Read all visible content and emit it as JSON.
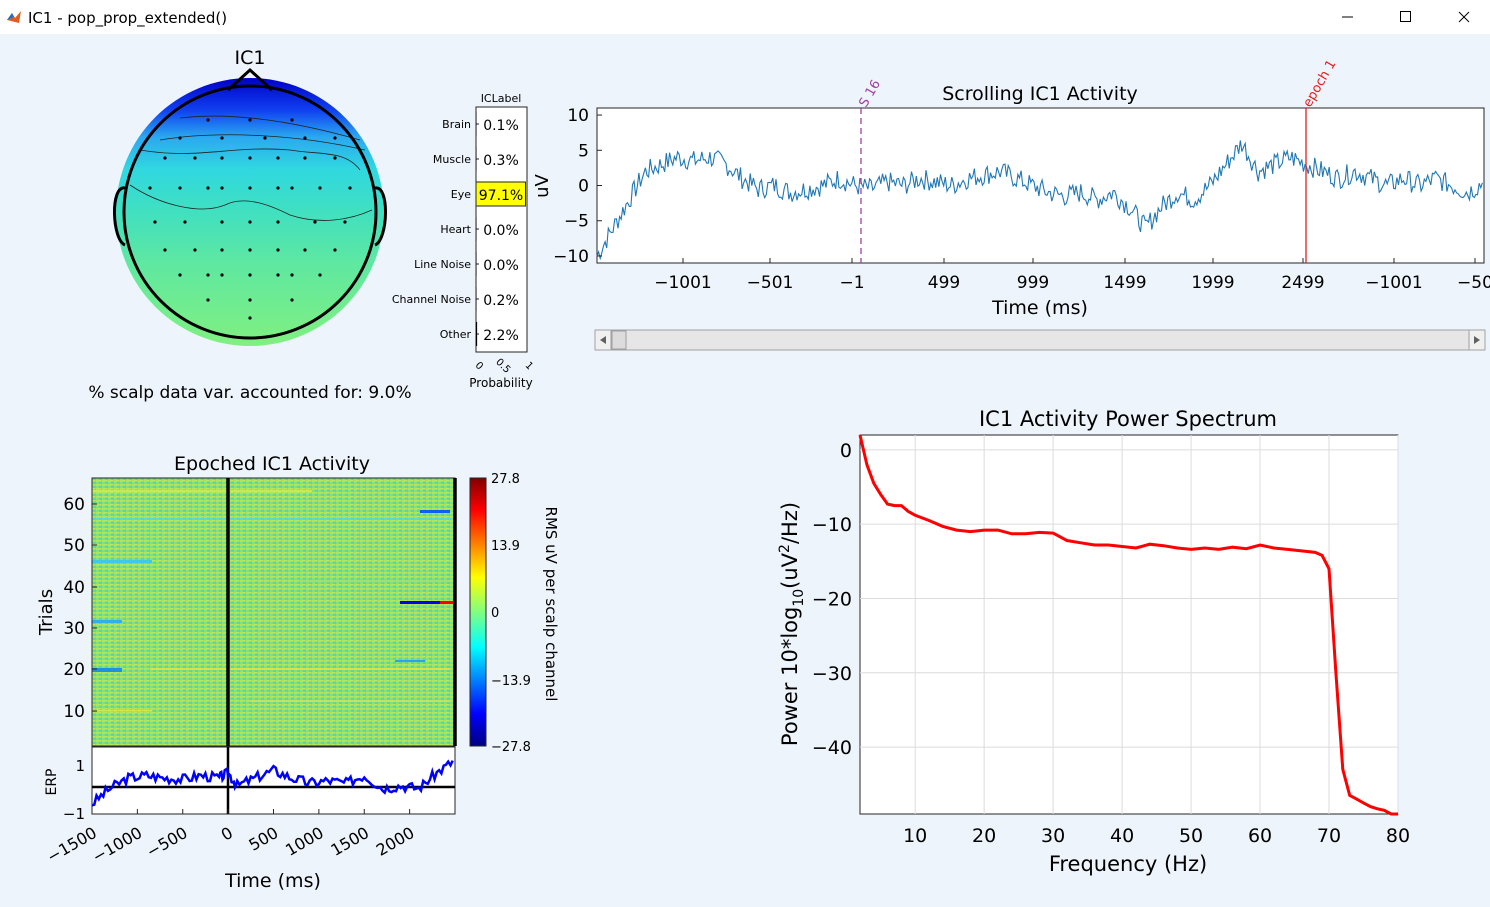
{
  "window": {
    "title": "IC1 - pop_prop_extended()"
  },
  "topo": {
    "title": "IC1",
    "variance_text": "% scalp data var. accounted for: 9.0%"
  },
  "iclabel": {
    "title": "ICLabel",
    "xlabel": "Probability",
    "xticks": [
      "0",
      "0.5",
      "1"
    ],
    "categories": [
      {
        "name": "Brain",
        "value": "0.1%",
        "prob": 0.001
      },
      {
        "name": "Muscle",
        "value": "0.3%",
        "prob": 0.003
      },
      {
        "name": "Eye",
        "value": "97.1%",
        "prob": 0.971
      },
      {
        "name": "Heart",
        "value": "0.0%",
        "prob": 0.0
      },
      {
        "name": "Line Noise",
        "value": "0.0%",
        "prob": 0.0
      },
      {
        "name": "Channel Noise",
        "value": "0.2%",
        "prob": 0.002
      },
      {
        "name": "Other",
        "value": "2.2%",
        "prob": 0.022
      }
    ],
    "highlight_color": "#ffff00"
  },
  "scrolling": {
    "title": "Scrolling IC1 Activity",
    "ylabel": "uV",
    "xlabel": "Time (ms)",
    "yticks": [
      "10",
      "5",
      "0",
      "−5",
      "−10"
    ],
    "xticks": [
      "−1001",
      "−501",
      "−1",
      "499",
      "999",
      "1499",
      "1999",
      "2499",
      "−1001",
      "−50"
    ],
    "event_s16": "S 16",
    "event_epoch": "epoch 1",
    "line_color": "#1f77b4"
  },
  "epoched": {
    "title": "Epoched IC1 Activity",
    "ylabel": "Trials",
    "yticks": [
      "60",
      "50",
      "40",
      "30",
      "20",
      "10"
    ],
    "colorbar_ticks": [
      "27.8",
      "13.9",
      "0",
      "−13.9",
      "−27.8"
    ],
    "colorbar_label": "RMS uV per scalp channel",
    "erp_label": "ERP",
    "erp_yticks": [
      "1",
      "−1"
    ],
    "xticks": [
      "−1500",
      "−1000",
      "−500",
      "0",
      "500",
      "1000",
      "1500",
      "2000"
    ],
    "xlabel": "Time (ms)"
  },
  "spectrum": {
    "title": "IC1 Activity Power Spectrum",
    "xlabel": "Frequency (Hz)",
    "ylabel_prefix": "Power 10*log",
    "ylabel_sub": "10",
    "ylabel_mid": "(uV",
    "ylabel_sup": "2",
    "ylabel_suffix": "/Hz)",
    "xticks": [
      "10",
      "20",
      "30",
      "40",
      "50",
      "60",
      "70",
      "80"
    ],
    "yticks": [
      "0",
      "−10",
      "−20",
      "−30",
      "−40"
    ],
    "line_color": "#ff0000"
  },
  "chart_data": [
    {
      "type": "bar",
      "title": "ICLabel",
      "categories": [
        "Brain",
        "Muscle",
        "Eye",
        "Heart",
        "Line Noise",
        "Channel Noise",
        "Other"
      ],
      "values": [
        0.001,
        0.003,
        0.971,
        0.0,
        0.0,
        0.002,
        0.022
      ],
      "xlabel": "Probability",
      "xlim": [
        0,
        1
      ]
    },
    {
      "type": "line",
      "title": "Scrolling IC1 Activity",
      "xlabel": "Time (ms)",
      "ylabel": "uV",
      "ylim": [
        -11,
        11
      ],
      "x": [
        -1500,
        -1400,
        -1300,
        -1200,
        -1100,
        -1000,
        -900,
        -800,
        -700,
        -600,
        -500,
        -400,
        -300,
        -200,
        -100,
        0,
        100,
        200,
        300,
        400,
        500,
        600,
        700,
        800,
        900,
        1000,
        1100,
        1200,
        1300,
        1400,
        1500,
        1600,
        1700,
        1800,
        1900,
        2000,
        2100,
        2200,
        2300,
        2400,
        2499,
        2600,
        2700,
        2800,
        2900,
        3000,
        3100,
        3200,
        3300,
        3400,
        3500,
        3600,
        3700,
        3800,
        3900,
        4000
      ],
      "y": [
        -10,
        -6,
        -2,
        2,
        3,
        4,
        3.5,
        4,
        3,
        1,
        -0.5,
        0,
        -1,
        -0.5,
        0,
        1,
        0,
        -0.5,
        0.5,
        0,
        1,
        0.5,
        0,
        1,
        1.5,
        2,
        1,
        0,
        -1,
        -1.5,
        -1,
        -2,
        -1,
        -3,
        -6,
        -3,
        -1,
        -2,
        0,
        3,
        6,
        2,
        3,
        4,
        3,
        2,
        1,
        2,
        1,
        0,
        1,
        0,
        1,
        0,
        -1,
        0.5
      ]
    },
    {
      "type": "heatmap",
      "title": "Epoched IC1 Activity",
      "ylabel": "Trials",
      "xlabel": "Time (ms)",
      "xlim": [
        -1500,
        2500
      ],
      "ylim": [
        1,
        65
      ],
      "colorbar_range": [
        -27.8,
        27.8
      ]
    },
    {
      "type": "line",
      "title": "ERP",
      "ylim": [
        -1,
        1
      ],
      "x": [
        -1500,
        -1300,
        -1100,
        -900,
        -700,
        -500,
        -300,
        -100,
        0,
        100,
        300,
        500,
        700,
        900,
        1100,
        1300,
        1500,
        1700,
        1900,
        2100,
        2300,
        2500
      ],
      "y": [
        -0.9,
        -0.3,
        0.1,
        0.2,
        0.1,
        0.05,
        0.2,
        0.1,
        0.3,
        -0.2,
        0.1,
        0.4,
        0.1,
        -0.1,
        0.0,
        -0.1,
        0.2,
        -0.3,
        -0.2,
        -0.3,
        0.3,
        0.8
      ]
    },
    {
      "type": "line",
      "title": "IC1 Activity Power Spectrum",
      "xlabel": "Frequency (Hz)",
      "ylabel": "Power 10*log10(uV2/Hz)",
      "xlim": [
        2,
        80
      ],
      "ylim": [
        -49,
        2
      ],
      "x": [
        2,
        3,
        4,
        5,
        6,
        7,
        8,
        9,
        10,
        12,
        14,
        16,
        18,
        20,
        22,
        24,
        26,
        28,
        30,
        32,
        34,
        36,
        38,
        40,
        42,
        44,
        46,
        48,
        50,
        52,
        54,
        56,
        58,
        60,
        62,
        64,
        66,
        68,
        69,
        70,
        71,
        72,
        73,
        74,
        75,
        76,
        77,
        78,
        79,
        80
      ],
      "y": [
        2,
        -2,
        -4.5,
        -6,
        -7.3,
        -7.5,
        -7.5,
        -8.3,
        -8.8,
        -9.5,
        -10.3,
        -10.8,
        -11,
        -10.8,
        -10.8,
        -11.3,
        -11.3,
        -11.1,
        -11.2,
        -12.2,
        -12.5,
        -12.8,
        -12.8,
        -13,
        -13.2,
        -12.7,
        -12.9,
        -13.2,
        -13.4,
        -13.2,
        -13.4,
        -13.1,
        -13.3,
        -12.8,
        -13.2,
        -13.4,
        -13.6,
        -13.8,
        -14.2,
        -16,
        -30,
        -43,
        -46.5,
        -47,
        -47.5,
        -48,
        -48.3,
        -48.5,
        -49,
        -49
      ]
    }
  ]
}
